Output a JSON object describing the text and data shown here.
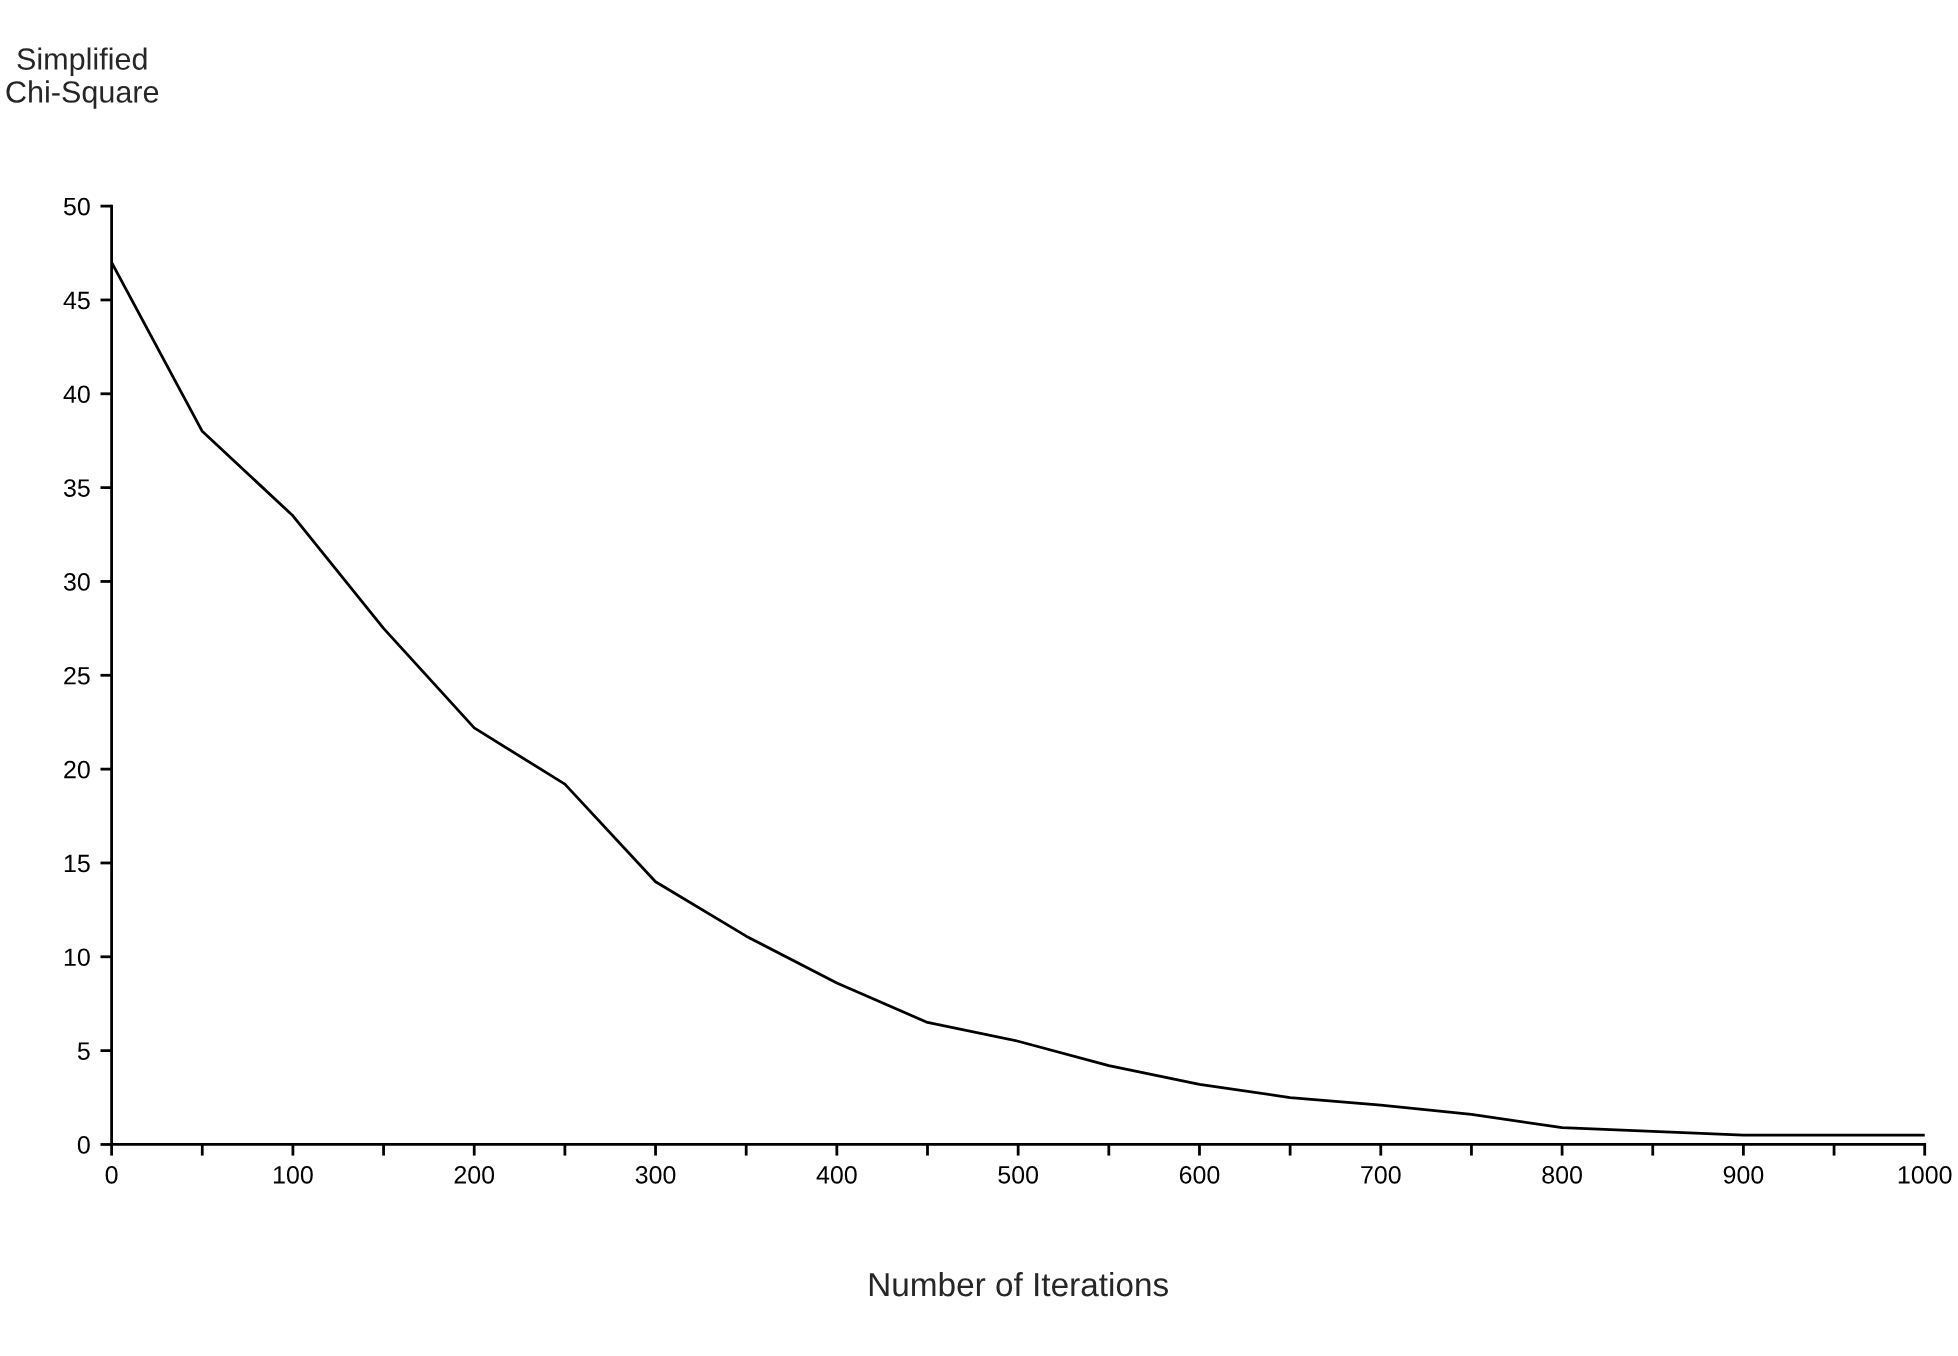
{
  "chart_data": {
    "type": "line",
    "xlabel": "Number of Iterations",
    "ylabel": "Simplified\nChi-Square",
    "x": [
      0,
      50,
      100,
      150,
      200,
      250,
      300,
      350,
      400,
      450,
      500,
      550,
      600,
      650,
      700,
      750,
      800,
      850,
      900,
      950,
      1000
    ],
    "series": [
      {
        "color": "#000000",
        "values": [
          47,
          38,
          33.5,
          27.5,
          22.2,
          19.2,
          14,
          11.1,
          8.6,
          6.5,
          5.5,
          4.2,
          3.2,
          2.5,
          2.1,
          1.6,
          0.9,
          0.7,
          0.5,
          0.5,
          0.5
        ]
      }
    ],
    "xlim": [
      0,
      1000
    ],
    "ylim": [
      0,
      50
    ],
    "xticks": [
      0,
      {
        "value": 50,
        "label": null
      },
      100,
      {
        "value": 150,
        "label": null
      },
      200,
      {
        "value": 250,
        "label": null
      },
      300,
      {
        "value": 350,
        "label": null
      },
      400,
      {
        "value": 450,
        "label": null
      },
      500,
      {
        "value": 550,
        "label": null
      },
      600,
      {
        "value": 650,
        "label": null
      },
      700,
      {
        "value": 750,
        "label": null
      },
      800,
      {
        "value": 850,
        "label": null
      },
      900,
      {
        "value": 950,
        "label": null
      },
      1000
    ],
    "yticks": [
      0,
      5,
      10,
      15,
      20,
      25,
      30,
      35,
      40,
      45,
      50
    ],
    "grid": false,
    "legend": false,
    "marker": "none",
    "line_style": "solid"
  }
}
